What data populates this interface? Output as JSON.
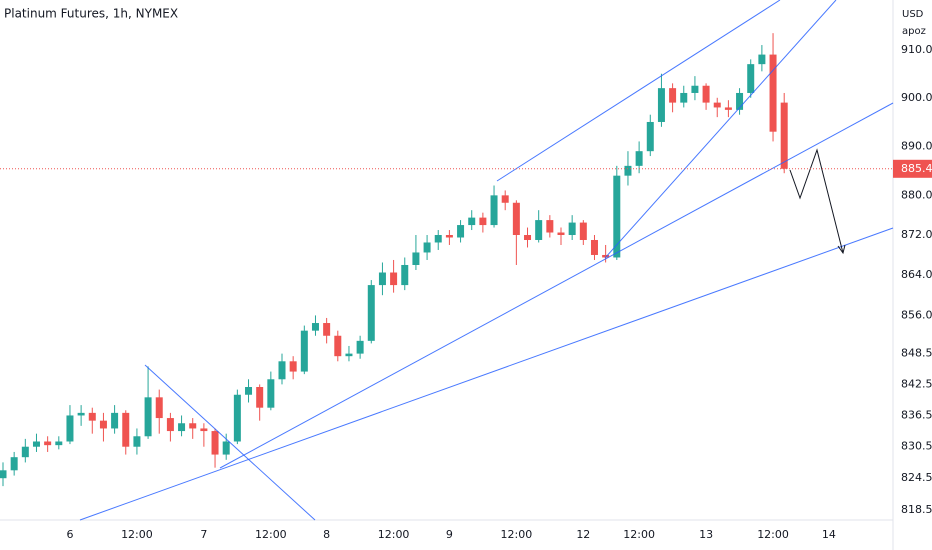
{
  "chart_data": {
    "type": "candlestick",
    "title": "Platinum Futures, 1h, NYMEX",
    "unit": "USD",
    "scale_label": "apoz",
    "log": true,
    "grid": false,
    "up_color": "#26a69a",
    "down_color": "#ef5350",
    "categories": [
      null,
      null,
      null,
      null,
      null,
      null,
      "6",
      null,
      null,
      null,
      null,
      null,
      "12:00",
      null,
      null,
      null,
      null,
      null,
      "7",
      null,
      null,
      null,
      null,
      null,
      "12:00",
      null,
      null,
      null,
      null,
      "8",
      null,
      null,
      null,
      null,
      null,
      "12:00",
      null,
      null,
      null,
      null,
      "9",
      null,
      null,
      null,
      null,
      null,
      "12:00",
      null,
      null,
      null,
      null,
      null,
      "12",
      null,
      null,
      null,
      null,
      "12:00",
      null,
      null,
      null,
      null,
      null,
      "13",
      null,
      null,
      null,
      null,
      null,
      "12:00",
      null,
      null,
      null,
      null,
      "14"
    ],
    "open": [
      824.5,
      826.0,
      828.5,
      830.5,
      831.5,
      830.8,
      831.5,
      836.5,
      837.0,
      835.5,
      834.0,
      837.0,
      830.5,
      832.5,
      840.0,
      836.0,
      833.5,
      835.0,
      834.0,
      833.5,
      829.0,
      831.5,
      840.5,
      842.0,
      838.0,
      843.5,
      847.0,
      845.0,
      853.0,
      854.5,
      852.0,
      848.0,
      848.5,
      851.0,
      862.0,
      864.5,
      862.0,
      866.0,
      868.5,
      870.5,
      872.0,
      871.5,
      874.0,
      875.5,
      874.0,
      880.0,
      878.5,
      872.0,
      871.0,
      875.0,
      872.5,
      872.0,
      874.5,
      871.0,
      868.0,
      867.5,
      884.0,
      886.0,
      889.0,
      895.0,
      902.0,
      899.0,
      901.0,
      902.5,
      899.0,
      898.0,
      897.5,
      901.0,
      907.0,
      909.0,
      899.0,
      null,
      null,
      null,
      null
    ],
    "high": [
      827.5,
      829.5,
      832.0,
      833.0,
      832.5,
      832.5,
      838.5,
      838.5,
      838.0,
      837.0,
      838.5,
      837.5,
      834.0,
      846.0,
      841.5,
      837.0,
      836.5,
      836.0,
      835.0,
      834.0,
      833.0,
      841.5,
      843.5,
      842.5,
      845.0,
      848.5,
      848.0,
      854.0,
      856.0,
      855.5,
      853.0,
      850.0,
      852.0,
      863.0,
      866.5,
      867.0,
      867.5,
      872.0,
      872.0,
      873.0,
      873.0,
      875.0,
      877.0,
      876.5,
      882.0,
      881.0,
      879.0,
      873.5,
      877.0,
      876.0,
      873.5,
      876.0,
      875.0,
      872.0,
      870.0,
      886.0,
      889.0,
      891.0,
      896.5,
      905.0,
      903.0,
      902.5,
      904.5,
      903.0,
      900.0,
      899.5,
      902.0,
      908.0,
      911.0,
      913.5,
      901.0,
      null,
      null,
      null,
      null
    ],
    "low": [
      823.0,
      825.0,
      827.5,
      829.5,
      829.5,
      830.0,
      831.0,
      834.5,
      833.0,
      831.5,
      833.0,
      829.0,
      829.0,
      832.0,
      833.0,
      831.5,
      832.5,
      832.0,
      830.5,
      826.5,
      828.0,
      831.0,
      839.0,
      835.5,
      837.5,
      842.5,
      843.5,
      844.5,
      852.0,
      850.5,
      847.0,
      847.0,
      847.5,
      850.5,
      860.0,
      860.5,
      861.0,
      865.0,
      867.0,
      869.0,
      870.0,
      870.5,
      873.0,
      872.5,
      873.5,
      877.0,
      866.0,
      869.5,
      870.5,
      871.5,
      870.0,
      871.0,
      870.0,
      867.0,
      866.5,
      867.0,
      882.0,
      884.5,
      888.0,
      894.0,
      897.0,
      898.0,
      899.5,
      897.5,
      896.0,
      896.0,
      896.5,
      900.0,
      905.5,
      891.0,
      884.5,
      null,
      null,
      null,
      null
    ],
    "close": [
      826.0,
      828.5,
      830.5,
      831.5,
      830.8,
      831.5,
      836.5,
      837.0,
      835.5,
      834.0,
      837.0,
      830.5,
      832.5,
      840.0,
      836.0,
      833.5,
      835.0,
      834.0,
      833.5,
      829.0,
      831.5,
      840.5,
      842.0,
      838.0,
      843.5,
      847.0,
      845.0,
      853.0,
      854.5,
      852.0,
      848.0,
      848.5,
      851.0,
      862.0,
      864.5,
      862.0,
      866.0,
      868.5,
      870.5,
      872.0,
      871.5,
      874.0,
      875.5,
      874.0,
      880.0,
      878.5,
      872.0,
      871.0,
      875.0,
      872.5,
      872.0,
      874.5,
      871.0,
      868.0,
      867.5,
      884.0,
      886.0,
      889.0,
      895.0,
      902.0,
      899.0,
      901.0,
      902.5,
      899.0,
      898.0,
      897.5,
      901.0,
      907.0,
      909.0,
      893.0,
      885.4,
      null,
      null,
      null,
      null
    ],
    "last_price": 885.4,
    "ylim": [
      816.6,
      920.5
    ],
    "yticks": [
      {
        "value": 910,
        "label": "910.0"
      },
      {
        "value": 900,
        "label": "900.0"
      },
      {
        "value": 890,
        "label": "890.0"
      },
      {
        "value": 880,
        "label": "880.0"
      },
      {
        "value": 872,
        "label": "872.0"
      },
      {
        "value": 864,
        "label": "864.0"
      },
      {
        "value": 856,
        "label": "856.0"
      },
      848.5,
      842.5,
      836.5,
      830.5,
      824.5,
      818.5
    ]
  }
}
